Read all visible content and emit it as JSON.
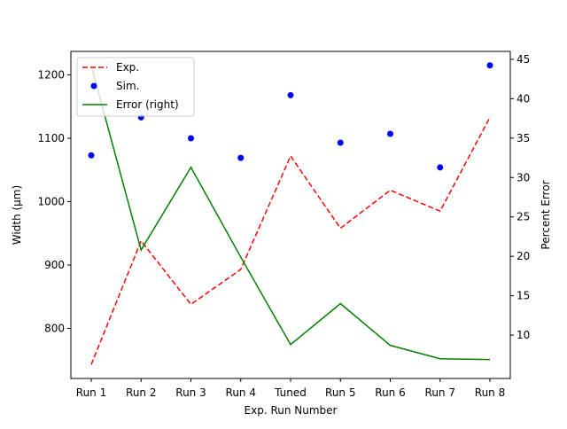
{
  "chart_data": {
    "type": "line",
    "categories": [
      "Run 1",
      "Run 2",
      "Run 3",
      "Run 4",
      "Tuned",
      "Run 5",
      "Run 6",
      "Run 7",
      "Run 8"
    ],
    "xlabel": "Exp. Run Number",
    "ylabel_left": "Width  (μm)",
    "ylabel_right": "Percent Error",
    "ylim_left": [
      721,
      1237
    ],
    "ylim_right": [
      4.5,
      46
    ],
    "yticks_left": [
      800,
      900,
      1000,
      1100,
      1200
    ],
    "yticks_right": [
      10,
      15,
      20,
      25,
      30,
      35,
      40,
      45
    ],
    "grid": false,
    "legend_position": "top-left",
    "series": [
      {
        "name": "Exp.",
        "axis": "left",
        "style": "dashed-line",
        "color": "#ff0000",
        "values": [
          743,
          938,
          838,
          893,
          1072,
          958,
          1018,
          985,
          1133
        ]
      },
      {
        "name": "Sim.",
        "axis": "left",
        "style": "points",
        "color": "#0000ff",
        "values": [
          1073,
          1133,
          1100,
          1069,
          1168,
          1093,
          1107,
          1054,
          1215
        ]
      },
      {
        "name": "Error (right)",
        "axis": "right",
        "style": "solid-line",
        "color": "#008000",
        "values": [
          44.2,
          20.8,
          31.3,
          19.9,
          8.8,
          14.0,
          8.7,
          7.0,
          6.9
        ]
      }
    ]
  }
}
